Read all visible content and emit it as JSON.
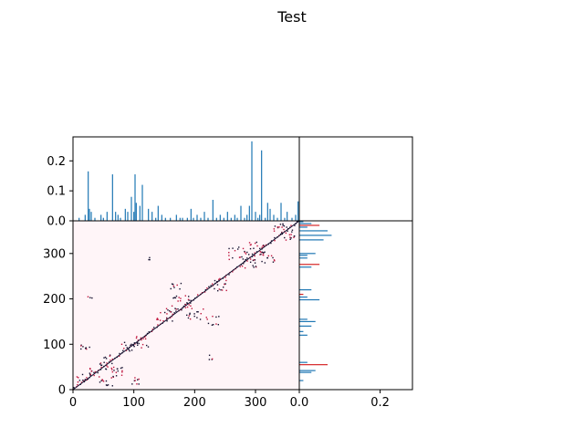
{
  "title": "Test",
  "colors": {
    "bar": "#1f77b4",
    "bar_highlight": "#d62728",
    "heatmap_bg": "#fff5f8",
    "heatmap_dark": "#14102e",
    "heatmap_mid": "#c0143c",
    "axis": "#000000"
  },
  "chart_data": [
    {
      "panel": "top-marginal",
      "type": "bar",
      "x_range": [
        0,
        372
      ],
      "ylim": [
        0,
        0.28
      ],
      "yticks": [
        0.0,
        0.1,
        0.2
      ],
      "ytick_labels": [
        "0.0",
        "0.1",
        "0.2"
      ],
      "x": [
        10,
        20,
        25,
        27,
        30,
        36,
        46,
        50,
        56,
        65,
        70,
        74,
        78,
        86,
        90,
        96,
        100,
        102,
        104,
        110,
        114,
        124,
        130,
        136,
        140,
        146,
        152,
        160,
        170,
        176,
        180,
        188,
        194,
        198,
        204,
        210,
        216,
        222,
        230,
        236,
        242,
        248,
        254,
        260,
        266,
        270,
        276,
        282,
        286,
        290,
        294,
        300,
        304,
        307,
        310,
        316,
        320,
        324,
        330,
        336,
        342,
        348,
        352,
        360,
        366,
        370
      ],
      "values": [
        0.01,
        0.02,
        0.165,
        0.04,
        0.03,
        0.01,
        0.02,
        0.01,
        0.03,
        0.155,
        0.03,
        0.02,
        0.01,
        0.04,
        0.03,
        0.08,
        0.03,
        0.155,
        0.06,
        0.05,
        0.12,
        0.04,
        0.03,
        0.01,
        0.05,
        0.02,
        0.01,
        0.01,
        0.02,
        0.01,
        0.01,
        0.01,
        0.04,
        0.01,
        0.02,
        0.01,
        0.03,
        0.01,
        0.07,
        0.01,
        0.02,
        0.01,
        0.03,
        0.01,
        0.02,
        0.01,
        0.05,
        0.01,
        0.02,
        0.05,
        0.265,
        0.03,
        0.01,
        0.02,
        0.235,
        0.01,
        0.06,
        0.04,
        0.02,
        0.01,
        0.06,
        0.01,
        0.03,
        0.01,
        0.02,
        0.065
      ]
    },
    {
      "panel": "heatmap",
      "type": "heatmap",
      "xlim": [
        0,
        372
      ],
      "ylim": [
        0,
        372
      ],
      "xticks": [
        0,
        100,
        200,
        300
      ],
      "xtick_labels": [
        "0",
        "100",
        "200",
        "300"
      ],
      "yticks": [
        0,
        100,
        200,
        300
      ],
      "ytick_labels": [
        "0",
        "100",
        "200",
        "300"
      ],
      "diagonal": true,
      "clusters": [
        {
          "x": 14,
          "y": 24,
          "n": 10,
          "spread": 10
        },
        {
          "x": 30,
          "y": 40,
          "n": 8,
          "spread": 8
        },
        {
          "x": 55,
          "y": 20,
          "n": 14,
          "spread": 12
        },
        {
          "x": 60,
          "y": 60,
          "n": 20,
          "spread": 18
        },
        {
          "x": 75,
          "y": 40,
          "n": 10,
          "spread": 10
        },
        {
          "x": 90,
          "y": 95,
          "n": 10,
          "spread": 10
        },
        {
          "x": 105,
          "y": 20,
          "n": 8,
          "spread": 8
        },
        {
          "x": 110,
          "y": 105,
          "n": 16,
          "spread": 14
        },
        {
          "x": 20,
          "y": 95,
          "n": 8,
          "spread": 8
        },
        {
          "x": 150,
          "y": 165,
          "n": 14,
          "spread": 14
        },
        {
          "x": 170,
          "y": 230,
          "n": 8,
          "spread": 12
        },
        {
          "x": 180,
          "y": 190,
          "n": 22,
          "spread": 18
        },
        {
          "x": 200,
          "y": 170,
          "n": 16,
          "spread": 16
        },
        {
          "x": 230,
          "y": 150,
          "n": 10,
          "spread": 12
        },
        {
          "x": 240,
          "y": 230,
          "n": 16,
          "spread": 14
        },
        {
          "x": 270,
          "y": 300,
          "n": 16,
          "spread": 14
        },
        {
          "x": 290,
          "y": 280,
          "n": 16,
          "spread": 12
        },
        {
          "x": 300,
          "y": 310,
          "n": 22,
          "spread": 16
        },
        {
          "x": 320,
          "y": 290,
          "n": 14,
          "spread": 12
        },
        {
          "x": 340,
          "y": 355,
          "n": 16,
          "spread": 12
        },
        {
          "x": 355,
          "y": 340,
          "n": 12,
          "spread": 12
        },
        {
          "x": 230,
          "y": 70,
          "n": 4,
          "spread": 6
        },
        {
          "x": 30,
          "y": 200,
          "n": 3,
          "spread": 6
        },
        {
          "x": 130,
          "y": 290,
          "n": 3,
          "spread": 6
        }
      ]
    },
    {
      "panel": "right-marginal",
      "type": "bar",
      "orientation": "horizontal",
      "y_range": [
        0,
        372
      ],
      "xlim": [
        0,
        0.28
      ],
      "xticks": [
        0.0,
        0.2
      ],
      "xtick_labels": [
        "0.0",
        "0.2"
      ],
      "y": [
        20,
        38,
        42,
        55,
        60,
        120,
        128,
        140,
        150,
        155,
        198,
        204,
        210,
        220,
        270,
        276,
        290,
        296,
        300,
        330,
        340,
        350,
        358,
        362,
        366,
        370
      ],
      "values": [
        0.01,
        0.03,
        0.04,
        0.07,
        0.02,
        0.02,
        0.01,
        0.03,
        0.04,
        0.02,
        0.05,
        0.02,
        0.01,
        0.03,
        0.03,
        0.05,
        0.02,
        0.02,
        0.04,
        0.06,
        0.08,
        0.07,
        0.02,
        0.05,
        0.03,
        0.01
      ],
      "highlight": [
        55,
        210,
        276,
        362
      ]
    }
  ]
}
